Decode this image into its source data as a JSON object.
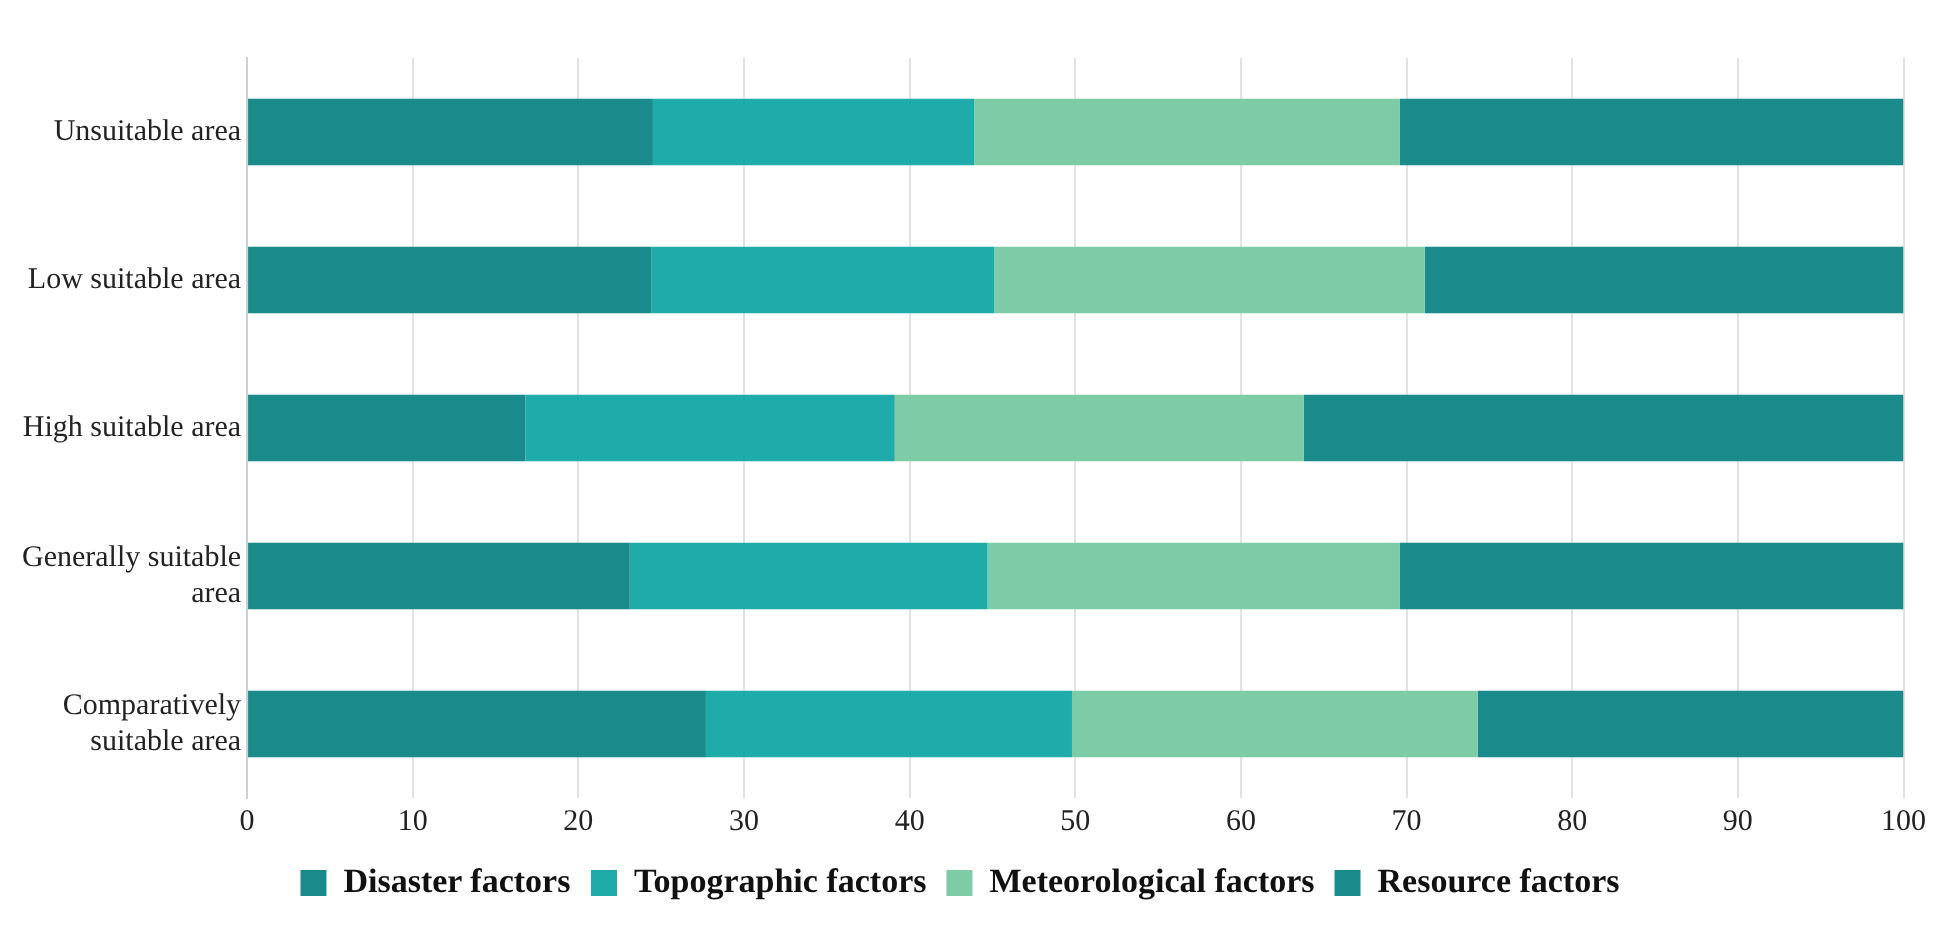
{
  "chart_data": {
    "type": "bar",
    "orientation": "horizontal",
    "stacked": true,
    "categories": [
      "Unsuitable area",
      "Low suitable area",
      "High suitable area",
      "Generally suitable area",
      "Comparatively suitable area"
    ],
    "series": [
      {
        "name": "Disaster factors",
        "color": "#1b8a8a",
        "values": [
          24.5,
          24.4,
          16.8,
          23.1,
          27.7
        ]
      },
      {
        "name": "Topographic factors",
        "color": "#20abab",
        "values": [
          19.4,
          20.7,
          22.3,
          21.6,
          22.1
        ]
      },
      {
        "name": "Meteorological factors",
        "color": "#7ecba8",
        "values": [
          25.7,
          26.0,
          24.7,
          24.9,
          24.5
        ]
      },
      {
        "name": "Resource factors",
        "color": "#1b8a8a",
        "values": [
          30.4,
          28.9,
          36.2,
          30.4,
          25.7
        ]
      }
    ],
    "xlim": [
      0,
      100
    ],
    "xticks": [
      0,
      10,
      20,
      30,
      40,
      50,
      60,
      70,
      80,
      90,
      100
    ],
    "grid": "x",
    "legend": "bottom"
  }
}
